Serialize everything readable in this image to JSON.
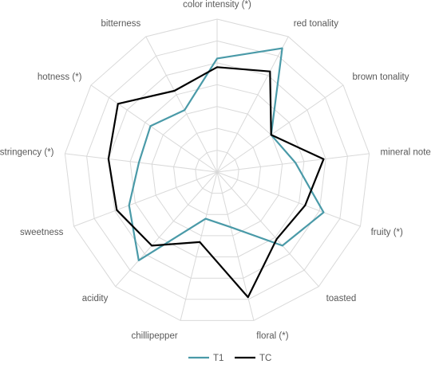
{
  "chart_data": {
    "type": "radar",
    "title": "",
    "categories": [
      "color intensity (*)",
      "red tonality",
      "brown tonality",
      "mineral note",
      "fruity (*)",
      "toasted",
      "floral (*)",
      "chillipepper",
      "acidity",
      "sweetness",
      "astringency (*)",
      "hotness (*)",
      "bitterness"
    ],
    "rlim": [
      0,
      7
    ],
    "grid": true,
    "legend_position": "bottom",
    "series": [
      {
        "name": "T1",
        "color": "#4a9aa8",
        "values": [
          5.2,
          6.4,
          3.0,
          3.6,
          5.2,
          4.5,
          2.6,
          2.2,
          5.4,
          4.3,
          3.6,
          3.7,
          3.2
        ]
      },
      {
        "name": "TC",
        "color": "#000000",
        "values": [
          4.8,
          5.2,
          3.0,
          4.9,
          4.3,
          4.1,
          5.9,
          3.3,
          4.5,
          4.9,
          5.0,
          5.5,
          4.2
        ]
      }
    ]
  }
}
